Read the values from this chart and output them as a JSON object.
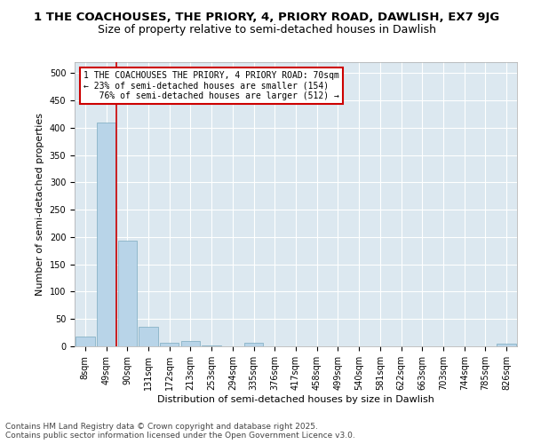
{
  "title_line1": "1 THE COACHOUSES, THE PRIORY, 4, PRIORY ROAD, DAWLISH, EX7 9JG",
  "title_line2": "Size of property relative to semi-detached houses in Dawlish",
  "xlabel": "Distribution of semi-detached houses by size in Dawlish",
  "ylabel": "Number of semi-detached properties",
  "categories": [
    "8sqm",
    "49sqm",
    "90sqm",
    "131sqm",
    "172sqm",
    "213sqm",
    "253sqm",
    "294sqm",
    "335sqm",
    "376sqm",
    "417sqm",
    "458sqm",
    "499sqm",
    "540sqm",
    "581sqm",
    "622sqm",
    "663sqm",
    "703sqm",
    "744sqm",
    "785sqm",
    "826sqm"
  ],
  "values": [
    18,
    410,
    193,
    35,
    7,
    10,
    2,
    0,
    6,
    0,
    0,
    0,
    0,
    0,
    0,
    0,
    0,
    0,
    0,
    0,
    5
  ],
  "bar_color": "#b8d4e8",
  "bar_edge_color": "#7aaabf",
  "red_line_color": "#cc0000",
  "red_line_x": 1.5,
  "annotation_text": "1 THE COACHOUSES THE PRIORY, 4 PRIORY ROAD: 70sqm\n← 23% of semi-detached houses are smaller (154)\n   76% of semi-detached houses are larger (512) →",
  "annotation_box_color": "#ffffff",
  "annotation_box_edge": "#cc0000",
  "plot_bg_color": "#dce8f0",
  "fig_bg_color": "#ffffff",
  "ylim": [
    0,
    520
  ],
  "yticks": [
    0,
    50,
    100,
    150,
    200,
    250,
    300,
    350,
    400,
    450,
    500
  ],
  "footer_line1": "Contains HM Land Registry data © Crown copyright and database right 2025.",
  "footer_line2": "Contains public sector information licensed under the Open Government Licence v3.0.",
  "title_fontsize": 9.5,
  "subtitle_fontsize": 9,
  "axis_label_fontsize": 8,
  "tick_fontsize": 7,
  "annotation_fontsize": 7,
  "footer_fontsize": 6.5
}
